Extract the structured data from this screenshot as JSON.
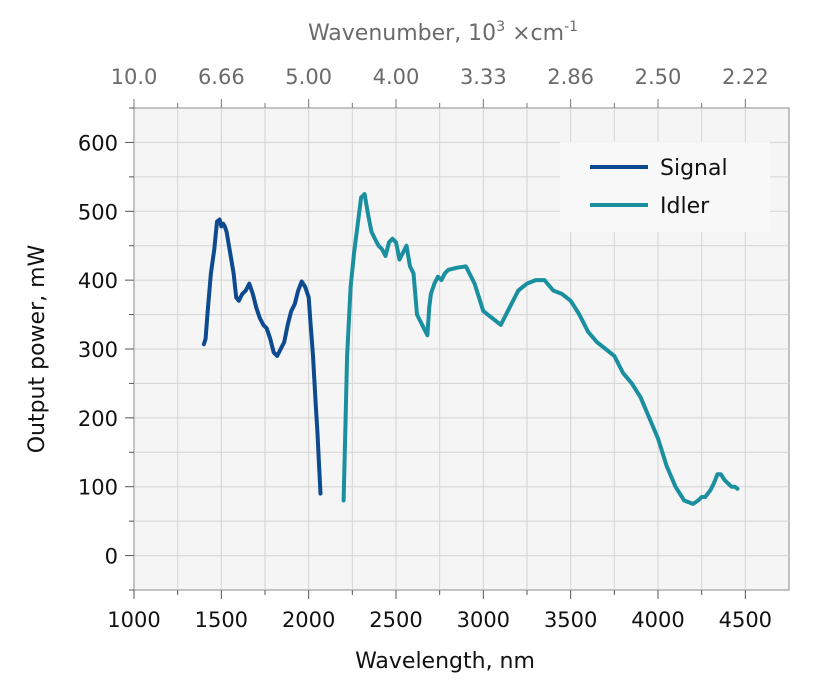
{
  "chart_data": {
    "type": "line",
    "xlabel": "Wavelength, nm",
    "ylabel": "Output power, mW",
    "top_axis_label": {
      "main": "Wavenumber, 10",
      "sup1": "3",
      "mid": " ×cm",
      "sup2": "-1"
    },
    "xlim": [
      1000,
      4750
    ],
    "ylim": [
      -50,
      650
    ],
    "xticks": [
      1000,
      1500,
      2000,
      2500,
      3000,
      3500,
      4000,
      4500
    ],
    "xtick_labels": [
      "1000",
      "1500",
      "2000",
      "2500",
      "3000",
      "3500",
      "4000",
      "4500"
    ],
    "yticks": [
      0,
      100,
      200,
      300,
      400,
      500,
      600
    ],
    "ytick_labels": [
      "0",
      "100",
      "200",
      "300",
      "400",
      "500",
      "600"
    ],
    "top_ticks": [
      1000,
      1500,
      2000,
      2500,
      3000,
      3500,
      4000,
      4500
    ],
    "top_tick_labels": [
      "10.0",
      "6.66",
      "5.00",
      "4.00",
      "3.33",
      "2.86",
      "2.50",
      "2.22"
    ],
    "grid": true,
    "legend_position": "top-right",
    "series": [
      {
        "name": "Signal",
        "color": "#0d4a8f",
        "x": [
          1400,
          1410,
          1420,
          1440,
          1460,
          1475,
          1490,
          1500,
          1510,
          1520,
          1530,
          1550,
          1570,
          1585,
          1600,
          1620,
          1640,
          1660,
          1680,
          1700,
          1720,
          1740,
          1760,
          1780,
          1800,
          1820,
          1840,
          1860,
          1880,
          1900,
          1920,
          1940,
          1960,
          1980,
          2000,
          2010,
          2025,
          2040,
          2050,
          2060,
          2068
        ],
        "y": [
          307,
          315,
          350,
          410,
          445,
          485,
          488,
          478,
          482,
          478,
          470,
          440,
          410,
          375,
          370,
          380,
          385,
          395,
          380,
          360,
          345,
          335,
          330,
          315,
          295,
          290,
          300,
          310,
          335,
          355,
          365,
          385,
          398,
          390,
          375,
          340,
          290,
          220,
          180,
          130,
          90
        ]
      },
      {
        "name": "Idler",
        "color": "#1a8fa0",
        "x": [
          2200,
          2210,
          2220,
          2240,
          2260,
          2280,
          2300,
          2320,
          2340,
          2360,
          2380,
          2400,
          2420,
          2440,
          2460,
          2480,
          2500,
          2520,
          2540,
          2560,
          2580,
          2600,
          2620,
          2640,
          2660,
          2680,
          2690,
          2700,
          2720,
          2740,
          2760,
          2780,
          2800,
          2850,
          2900,
          2950,
          3000,
          3050,
          3100,
          3150,
          3200,
          3250,
          3300,
          3350,
          3400,
          3450,
          3500,
          3550,
          3600,
          3650,
          3700,
          3750,
          3800,
          3850,
          3900,
          3950,
          4000,
          4050,
          4100,
          4150,
          4200,
          4230,
          4250,
          4270,
          4300,
          4320,
          4340,
          4360,
          4380,
          4400,
          4420,
          4440,
          4455
        ],
        "y": [
          80,
          180,
          290,
          390,
          440,
          480,
          520,
          525,
          495,
          470,
          460,
          450,
          445,
          435,
          455,
          460,
          455,
          430,
          440,
          450,
          420,
          410,
          350,
          340,
          330,
          320,
          360,
          380,
          395,
          405,
          400,
          410,
          415,
          418,
          420,
          395,
          355,
          345,
          335,
          360,
          385,
          395,
          400,
          400,
          385,
          380,
          370,
          350,
          325,
          310,
          300,
          290,
          265,
          250,
          230,
          200,
          170,
          130,
          100,
          80,
          75,
          80,
          85,
          85,
          95,
          105,
          118,
          118,
          110,
          105,
          100,
          100,
          97
        ]
      }
    ]
  }
}
